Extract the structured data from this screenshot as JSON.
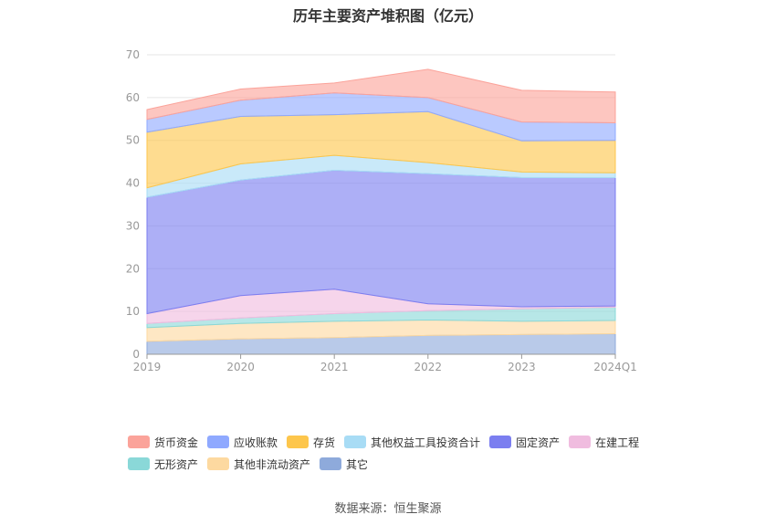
{
  "chart_data": {
    "type": "area",
    "stacked": true,
    "title": "历年主要资产堆积图（亿元）",
    "source": "数据来源：恒生聚源",
    "categories": [
      "2019",
      "2020",
      "2021",
      "2022",
      "2023",
      "2024Q1"
    ],
    "ylim": [
      0,
      70
    ],
    "yticks": [
      "0",
      "10",
      "20",
      "30",
      "40",
      "50",
      "60",
      "70"
    ],
    "grid": true,
    "legend_position": "bottom",
    "series": [
      {
        "name": "其它",
        "color": "#8eaadb",
        "values": [
          3.0,
          3.6,
          3.9,
          4.4,
          4.6,
          4.8
        ]
      },
      {
        "name": "其他非流动资产",
        "color": "#fdd9a0",
        "values": [
          3.2,
          3.6,
          3.8,
          3.6,
          3.1,
          3.1
        ]
      },
      {
        "name": "无形资产",
        "color": "#8ad8d8",
        "values": [
          1.0,
          1.3,
          1.8,
          2.2,
          2.9,
          3.1
        ]
      },
      {
        "name": "在建工程",
        "color": "#f0bcdf",
        "values": [
          2.3,
          5.2,
          5.7,
          1.6,
          0.5,
          0.3
        ]
      },
      {
        "name": "固定资产",
        "color": "#7b7ef0",
        "values": [
          27.2,
          27.0,
          27.8,
          30.4,
          30.2,
          30.0
        ]
      },
      {
        "name": "其他权益工具投资合计",
        "color": "#a8dcf5",
        "values": [
          2.2,
          3.8,
          3.5,
          2.6,
          1.3,
          1.1
        ]
      },
      {
        "name": "存货",
        "color": "#fdc64c",
        "values": [
          13.0,
          11.1,
          9.5,
          11.9,
          7.3,
          7.6
        ]
      },
      {
        "name": "应收账款",
        "color": "#8fa9ff",
        "values": [
          3.0,
          3.8,
          5.1,
          3.3,
          4.4,
          4.1
        ]
      },
      {
        "name": "货币资金",
        "color": "#fba39a",
        "values": [
          2.3,
          2.6,
          2.3,
          6.6,
          7.4,
          7.2
        ]
      }
    ],
    "legend_order": [
      "货币资金",
      "应收账款",
      "存货",
      "其他权益工具投资合计",
      "固定资产",
      "在建工程",
      "无形资产",
      "其他非流动资产",
      "其它"
    ]
  }
}
